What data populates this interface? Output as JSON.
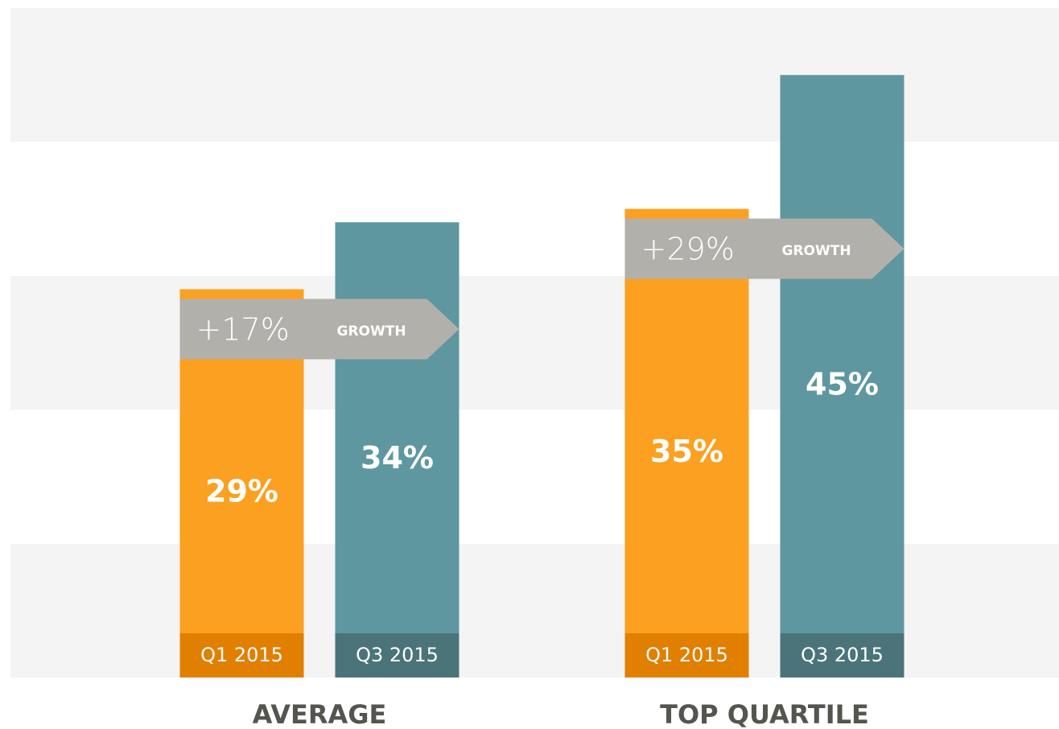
{
  "chart_data": {
    "type": "bar",
    "categories": [
      "AVERAGE",
      "TOP QUARTILE"
    ],
    "series": [
      {
        "name": "Q1 2015",
        "color": "#fba020",
        "label_color": "#e17f00",
        "values": [
          29,
          35
        ],
        "value_labels": [
          "29%",
          "35%"
        ]
      },
      {
        "name": "Q3 2015",
        "color": "#5e97a0",
        "label_color": "#4a747a",
        "values": [
          34,
          45
        ],
        "value_labels": [
          "34%",
          "45%"
        ]
      }
    ],
    "annotations": [
      {
        "text": "+17%",
        "label": "GROWTH"
      },
      {
        "text": "+29%",
        "label": "GROWTH"
      }
    ],
    "ylim": [
      0,
      50
    ]
  }
}
